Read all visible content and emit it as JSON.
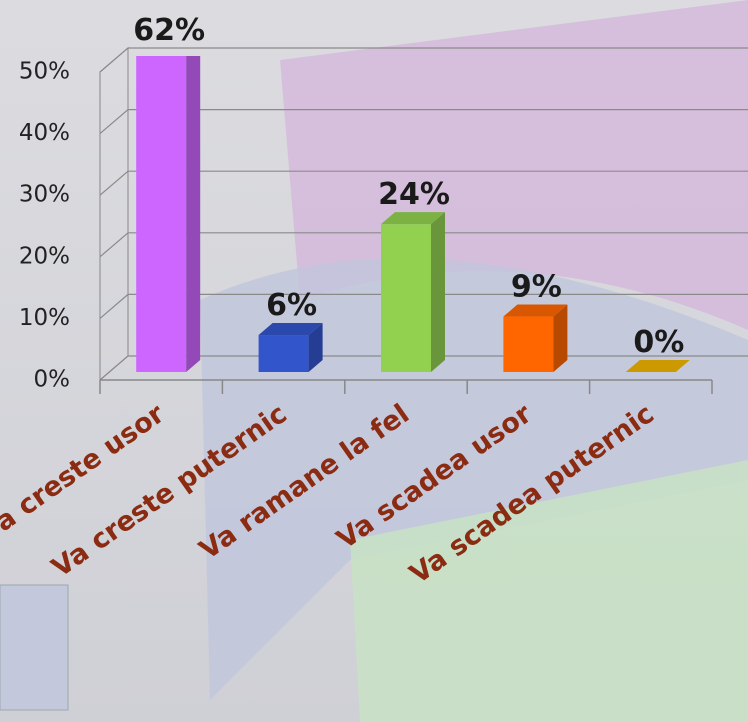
{
  "chart_data": {
    "type": "bar",
    "categories": [
      "Va creste usor",
      "Va creste puternic",
      "Va ramane la fel",
      "Va scadea usor",
      "Va scadea puternic"
    ],
    "values": [
      62,
      6,
      24,
      9,
      0
    ],
    "value_labels": [
      "62%",
      "6%",
      "24%",
      "9%",
      "0%"
    ],
    "colors": [
      "#cc66ff",
      "#3355cc",
      "#92d050",
      "#ff6600",
      "#cc9900"
    ],
    "ylim": [
      0,
      50
    ],
    "yticks": [
      {
        "value": 0,
        "label": "0%"
      },
      {
        "value": 10,
        "label": "10%"
      },
      {
        "value": 20,
        "label": "20%"
      },
      {
        "value": 30,
        "label": "30%"
      },
      {
        "value": 40,
        "label": "40%"
      },
      {
        "value": 50,
        "label": "50%"
      }
    ],
    "grid": true
  }
}
